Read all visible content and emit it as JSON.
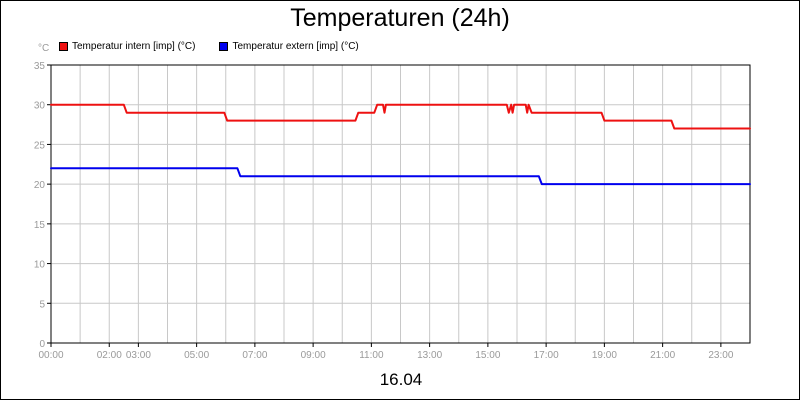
{
  "chart_data": {
    "type": "line",
    "title": "Temperaturen (24h)",
    "unit_label": "°C",
    "date_label": "16.04",
    "xlabel": "",
    "ylabel": "",
    "xlim": [
      0,
      24
    ],
    "ylim": [
      0,
      35
    ],
    "y_ticks": [
      0,
      5,
      10,
      15,
      20,
      25,
      30,
      35
    ],
    "x_ticks": [
      {
        "value": 0,
        "label": "00:00"
      },
      {
        "value": 2,
        "label": "02:00"
      },
      {
        "value": 3,
        "label": "03:00"
      },
      {
        "value": 5,
        "label": "05:00"
      },
      {
        "value": 7,
        "label": "07:00"
      },
      {
        "value": 9,
        "label": "09:00"
      },
      {
        "value": 11,
        "label": "11:00"
      },
      {
        "value": 13,
        "label": "13:00"
      },
      {
        "value": 15,
        "label": "15:00"
      },
      {
        "value": 17,
        "label": "17:00"
      },
      {
        "value": 19,
        "label": "19:00"
      },
      {
        "value": 21,
        "label": "21:00"
      },
      {
        "value": 23,
        "label": "23:00"
      }
    ],
    "grid": true,
    "legend_position": "top-left",
    "colors": {
      "grid": "#c8c8c8",
      "axis": "#000000",
      "tick_text": "#9a9a9a"
    },
    "series": [
      {
        "name": "Temperatur intern [imp] (°C)",
        "color": "#ee1111",
        "points": [
          [
            0.0,
            30
          ],
          [
            2.5,
            30
          ],
          [
            2.6,
            29
          ],
          [
            5.95,
            29
          ],
          [
            6.05,
            28
          ],
          [
            10.45,
            28
          ],
          [
            10.55,
            29
          ],
          [
            11.1,
            29
          ],
          [
            11.2,
            30
          ],
          [
            11.4,
            30
          ],
          [
            11.45,
            29
          ],
          [
            11.5,
            30
          ],
          [
            15.65,
            30
          ],
          [
            15.72,
            29
          ],
          [
            15.8,
            30
          ],
          [
            15.85,
            29
          ],
          [
            15.9,
            30
          ],
          [
            16.3,
            30
          ],
          [
            16.35,
            29
          ],
          [
            16.4,
            30
          ],
          [
            16.5,
            29
          ],
          [
            18.9,
            29
          ],
          [
            19.0,
            28
          ],
          [
            21.3,
            28
          ],
          [
            21.4,
            27
          ],
          [
            24.0,
            27
          ]
        ]
      },
      {
        "name": "Temperatur extern [imp] (°C)",
        "color": "#0000ee",
        "points": [
          [
            0.0,
            22
          ],
          [
            6.4,
            22
          ],
          [
            6.5,
            21
          ],
          [
            16.75,
            21
          ],
          [
            16.85,
            20
          ],
          [
            24.0,
            20
          ]
        ]
      }
    ]
  }
}
